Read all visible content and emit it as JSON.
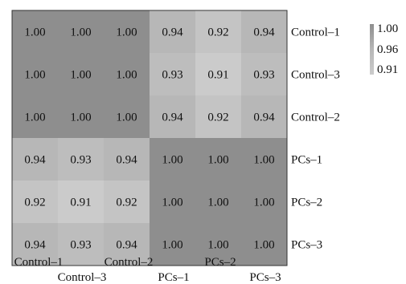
{
  "chart_data": {
    "type": "heatmap",
    "title": "",
    "rows": [
      "Control–1",
      "Control–3",
      "Control–2",
      "PCs–1",
      "PCs–2",
      "PCs–3"
    ],
    "columns": [
      "Control–1",
      "Control–3",
      "Control–2",
      "PCs–1",
      "PCs–2",
      "PCs–3"
    ],
    "column_labels_staggered": [
      "Control–1",
      "Control–2",
      "PCs–2",
      "Control–3",
      "PCs–1",
      "PCs–3"
    ],
    "values": [
      [
        1.0,
        1.0,
        1.0,
        0.94,
        0.92,
        0.94
      ],
      [
        1.0,
        1.0,
        1.0,
        0.93,
        0.91,
        0.93
      ],
      [
        1.0,
        1.0,
        1.0,
        0.94,
        0.92,
        0.94
      ],
      [
        0.94,
        0.93,
        0.94,
        1.0,
        1.0,
        1.0
      ],
      [
        0.92,
        0.91,
        0.92,
        1.0,
        1.0,
        1.0
      ],
      [
        0.94,
        0.93,
        0.94,
        1.0,
        1.0,
        1.0
      ]
    ],
    "color_scale": {
      "min": 0.91,
      "max": 1.0,
      "ticks": [
        "1.00",
        "0.96",
        "0.91"
      ],
      "low_color": "#cbcbcb",
      "high_color": "#8e8e8e",
      "mid_color": "#b7b7b7"
    },
    "legend_position": "top-right",
    "grid": false
  }
}
